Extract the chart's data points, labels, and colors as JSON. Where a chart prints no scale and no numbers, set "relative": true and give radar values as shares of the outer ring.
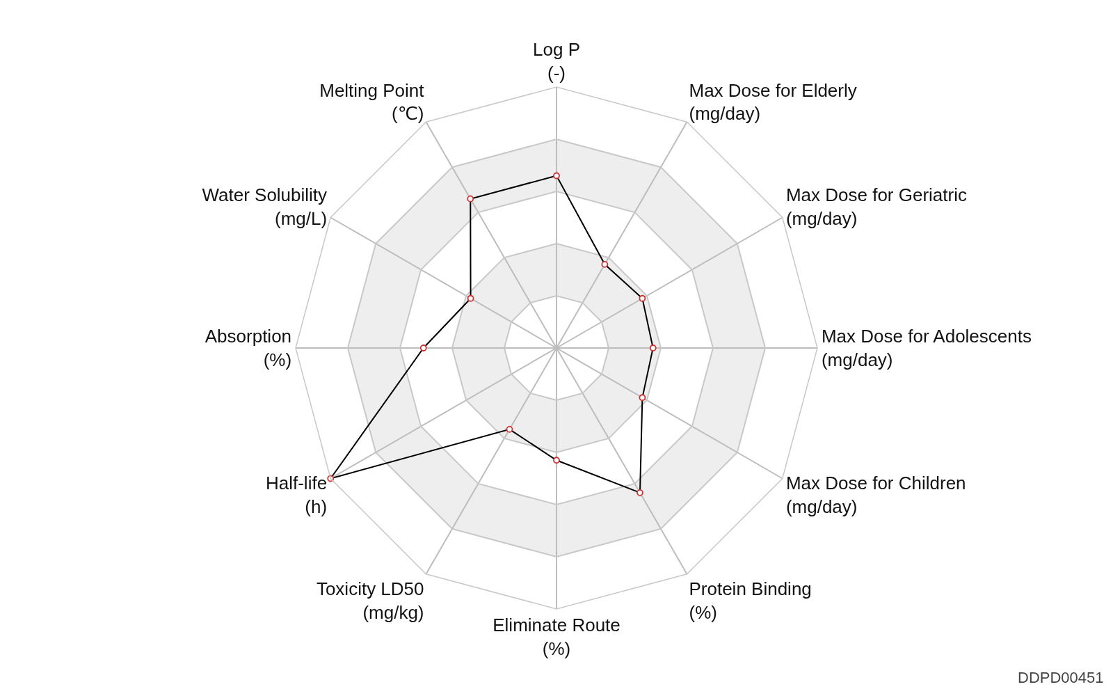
{
  "chart_data": {
    "type": "radar",
    "categories": [
      "Log P\n(-)",
      "Max Dose for Elderly\n(mg/day)",
      "Max Dose for Geriatric\n(mg/day)",
      "Max Dose for Adolescents\n(mg/day)",
      "Max Dose for Children\n(mg/day)",
      "Protein Binding\n(%)",
      "Eliminate Route\n(%)",
      "Toxicity LD50\n(mg/kg)",
      "Half-life\n(h)",
      "Absorption\n(%)",
      "Water Solubility\n(mg/L)",
      "Melting Point\n(℃)"
    ],
    "relative": true,
    "series": [
      {
        "color": "#000000",
        "colors": [
          "#cc3333",
          "#cc3333",
          "#cc3333",
          "#cc3333",
          "#cc3333",
          "#cc3333",
          "#cc3333",
          "#cc3333",
          "#cc3333",
          "#cc3333",
          "#cc3333",
          "#cc3333"
        ],
        "values": [
          0.66,
          0.37,
          0.38,
          0.37,
          0.38,
          0.64,
          0.43,
          0.36,
          1.0,
          0.51,
          0.38,
          0.66
        ]
      }
    ],
    "marker": "circle",
    "grid": true,
    "annotations": [
      "DDPD00451"
    ]
  }
}
